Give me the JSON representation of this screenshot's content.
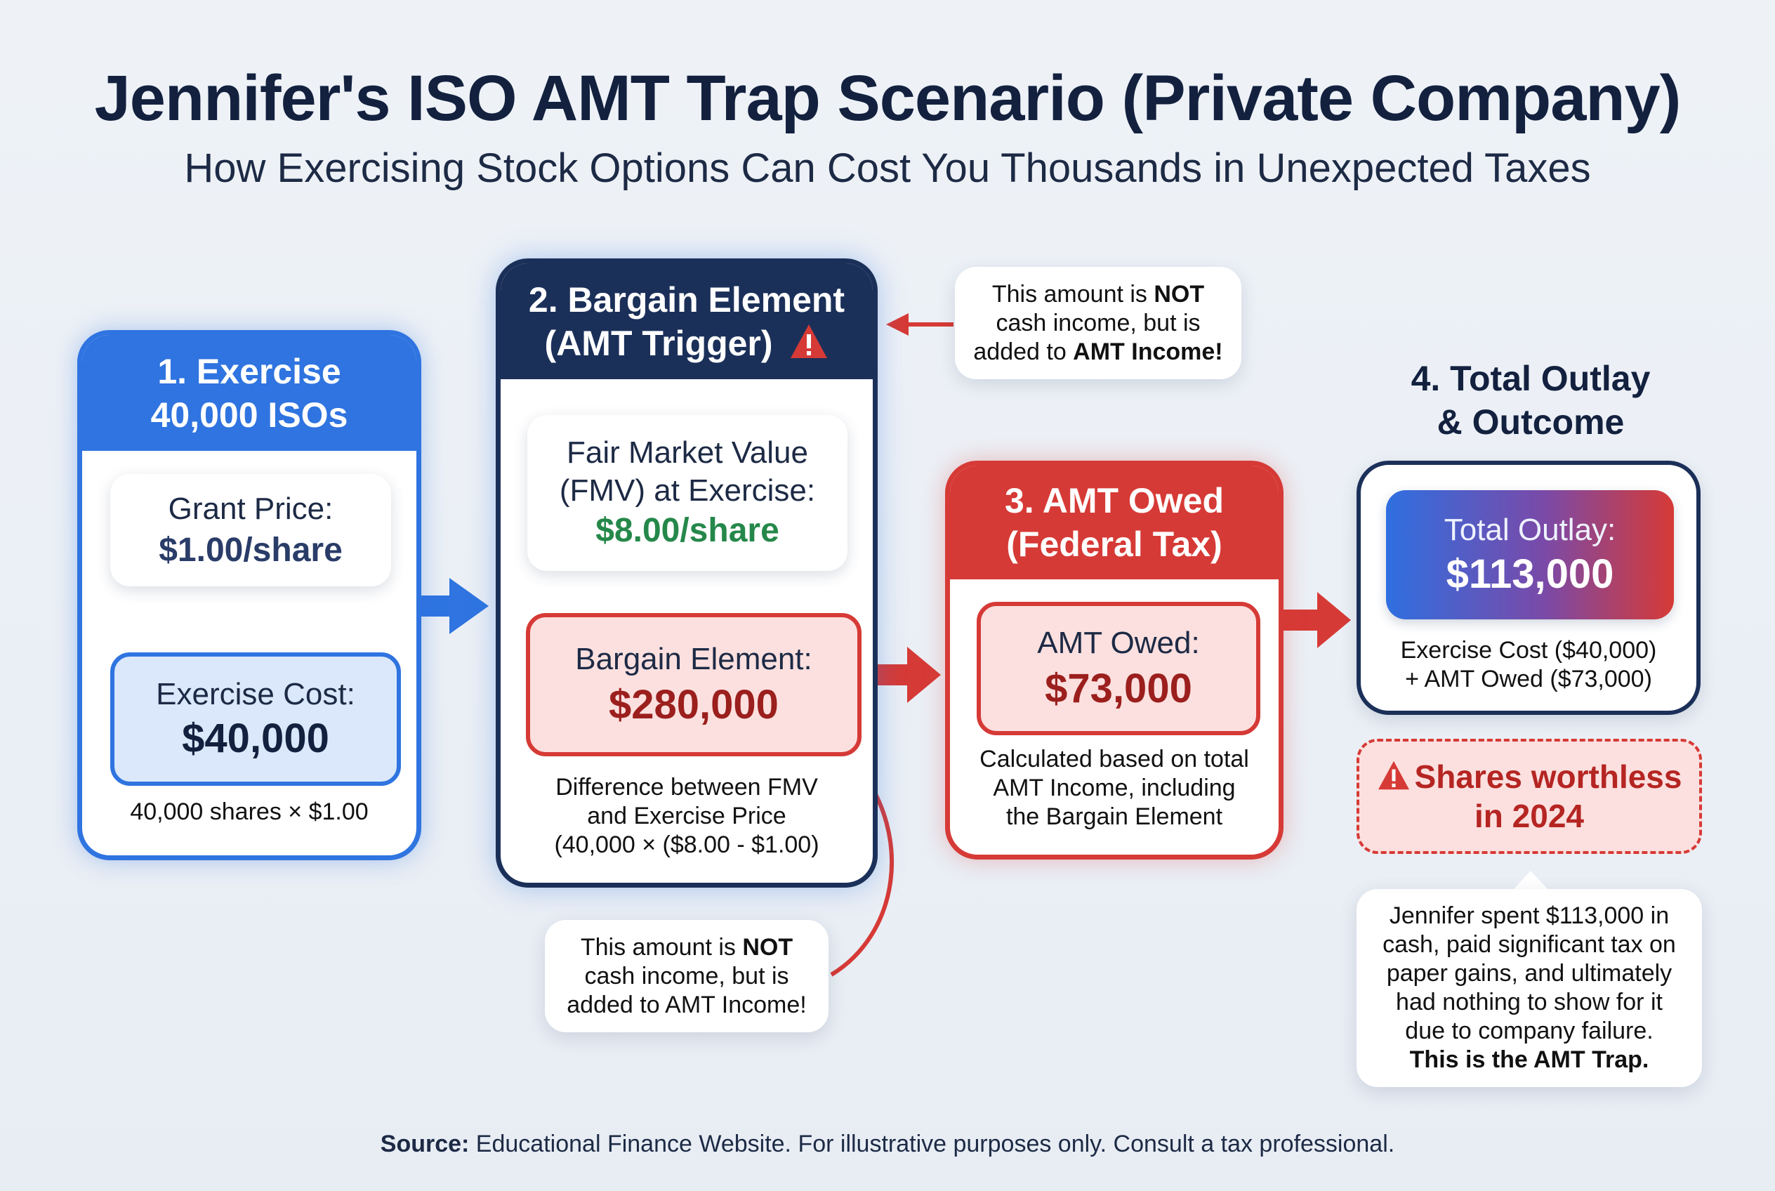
{
  "header": {
    "title": "Jennifer's ISO AMT Trap Scenario (Private Company)",
    "subtitle": "How Exercising Stock Options Can Cost You Thousands in Unexpected Taxes"
  },
  "step1": {
    "heading_line1": "1. Exercise",
    "heading_line2": "40,000 ISOs",
    "grant_label": "Grant Price:",
    "grant_value": "$1.00/share",
    "cost_label": "Exercise Cost:",
    "cost_value": "$40,000",
    "formula": "40,000 shares × $1.00"
  },
  "step2": {
    "heading_line1": "2. Bargain Element",
    "heading_line2": "(AMT Trigger)",
    "fmv_line1": "Fair Market Value",
    "fmv_line2": "(FMV) at Exercise:",
    "fmv_value": "$8.00/share",
    "bargain_label": "Bargain Element:",
    "bargain_value": "$280,000",
    "desc_line1": "Difference between FMV",
    "desc_line2": "and Exercise Price",
    "desc_line3": "(40,000 × ($8.00 - $1.00)"
  },
  "note_top": {
    "line1_pre": "This amount is ",
    "line1_bold": "NOT",
    "line2": "cash income, but is",
    "line3_pre": "added to ",
    "line3_bold": "AMT Income!"
  },
  "note_bottom": {
    "line1_pre": "This amount is ",
    "line1_bold": "NOT",
    "line2": "cash income, but is",
    "line3": "added to AMT Income!"
  },
  "step3": {
    "heading_line1": "3. AMT Owed",
    "heading_line2": "(Federal Tax)",
    "owed_label": "AMT Owed:",
    "owed_value": "$73,000",
    "desc_line1": "Calculated based on total",
    "desc_line2": "AMT Income, including",
    "desc_line3": "the Bargain Element"
  },
  "step4": {
    "heading_line1": "4. Total Outlay",
    "heading_line2": "& Outcome",
    "outlay_label": "Total Outlay:",
    "outlay_value": "$113,000",
    "breakdown_line1": "Exercise Cost ($40,000)",
    "breakdown_line2": "+ AMT Owed ($73,000)",
    "warning_line1": "Shares worthless",
    "warning_line2": "in 2024",
    "story_line1": "Jennifer spent $113,000 in",
    "story_line2": "cash, paid significant tax on",
    "story_line3": "paper gains, and ultimately",
    "story_line4": "had nothing to show for it",
    "story_line5": "due to company failure.",
    "story_line6": "This is the AMT Trap."
  },
  "footer": {
    "source_label": "Source:",
    "source_text": " Educational Finance Website. For illustrative purposes only. Consult a tax professional."
  },
  "colors": {
    "blue": "#2f74e0",
    "navy": "#1b3059",
    "red": "#d63a36",
    "green": "#25884a"
  },
  "icons": {
    "warning": "warning-icon",
    "arrow": "arrow-icon"
  }
}
